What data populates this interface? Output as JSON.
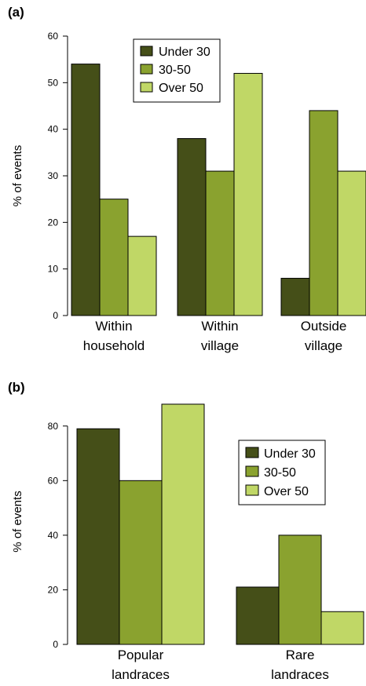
{
  "chart_data": [
    {
      "panel": "(a)",
      "type": "bar",
      "ylabel": "% of events",
      "ylim": [
        0,
        60
      ],
      "yticks": [
        0,
        10,
        20,
        30,
        40,
        50,
        60
      ],
      "categories": [
        [
          "Within",
          "household"
        ],
        [
          "Within",
          "village"
        ],
        [
          "Outside",
          "village"
        ]
      ],
      "series": [
        {
          "name": "Under 30",
          "color": "#454f18",
          "values": [
            54,
            38,
            8
          ]
        },
        {
          "name": "30-50",
          "color": "#8aa22f",
          "values": [
            25,
            31,
            44
          ]
        },
        {
          "name": "Over 50",
          "color": "#c0d766",
          "values": [
            17,
            52,
            31
          ]
        }
      ],
      "legend": "top-center",
      "grid": false
    },
    {
      "panel": "(b)",
      "type": "bar",
      "ylabel": "% of events",
      "ylim": [
        0,
        90
      ],
      "yticks": [
        0,
        20,
        40,
        60,
        80
      ],
      "categories": [
        [
          "Popular",
          "landraces"
        ],
        [
          "Rare",
          "landraces"
        ]
      ],
      "series": [
        {
          "name": "Under 30",
          "color": "#454f18",
          "values": [
            79,
            21
          ]
        },
        {
          "name": "30-50",
          "color": "#8aa22f",
          "values": [
            60,
            40
          ]
        },
        {
          "name": "Over 50",
          "color": "#c0d766",
          "values": [
            88,
            12
          ]
        }
      ],
      "legend": "right",
      "grid": false
    }
  ]
}
